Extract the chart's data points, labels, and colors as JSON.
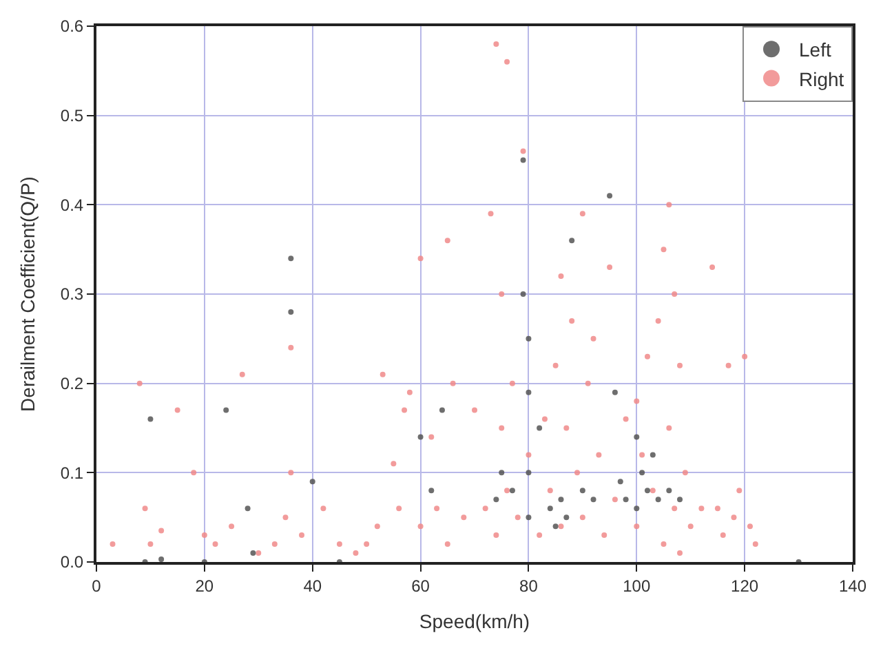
{
  "chart_data": {
    "type": "scatter",
    "xlabel": "Speed(km/h)",
    "ylabel": "Derailment Coefficient(Q/P)",
    "xlim": [
      0,
      140
    ],
    "xticks": [
      0,
      20,
      40,
      60,
      80,
      100,
      120,
      140
    ],
    "ylim": [
      0,
      0.6
    ],
    "yticks": [
      {
        "value": 0,
        "label": "0.0"
      },
      0.1,
      0.2,
      0.3,
      0.4,
      0.5,
      0.6
    ],
    "grid": true,
    "legend": "top right",
    "marker": "circle",
    "series": [
      {
        "name": "Left",
        "color": "#555555",
        "x": [
          9,
          10,
          12,
          20,
          24,
          28,
          29,
          36,
          36,
          40,
          45,
          60,
          62,
          64,
          74,
          75,
          77,
          79,
          79,
          80,
          80,
          80,
          80,
          82,
          84,
          85,
          86,
          87,
          88,
          90,
          92,
          95,
          96,
          97,
          98,
          100,
          100,
          101,
          102,
          103,
          104,
          106,
          108,
          130
        ],
        "values": [
          0.0,
          0.16,
          0.003,
          0.0,
          0.17,
          0.06,
          0.01,
          0.34,
          0.28,
          0.09,
          0.0,
          0.14,
          0.08,
          0.17,
          0.07,
          0.1,
          0.08,
          0.45,
          0.3,
          0.25,
          0.19,
          0.1,
          0.05,
          0.15,
          0.06,
          0.04,
          0.07,
          0.05,
          0.36,
          0.08,
          0.07,
          0.41,
          0.19,
          0.09,
          0.07,
          0.14,
          0.06,
          0.1,
          0.08,
          0.12,
          0.07,
          0.08,
          0.07,
          0.0
        ]
      },
      {
        "name": "Right",
        "color": "#f08a8a",
        "x": [
          3,
          8,
          9,
          10,
          12,
          15,
          18,
          20,
          22,
          25,
          27,
          30,
          33,
          35,
          36,
          36,
          38,
          42,
          45,
          48,
          50,
          52,
          53,
          55,
          56,
          57,
          58,
          60,
          60,
          62,
          63,
          65,
          65,
          66,
          68,
          70,
          72,
          73,
          74,
          74,
          75,
          75,
          76,
          76,
          77,
          78,
          79,
          80,
          82,
          83,
          84,
          85,
          86,
          86,
          87,
          88,
          89,
          90,
          90,
          91,
          92,
          93,
          94,
          95,
          96,
          98,
          100,
          100,
          101,
          102,
          103,
          104,
          105,
          105,
          106,
          106,
          107,
          107,
          108,
          108,
          109,
          110,
          112,
          114,
          115,
          116,
          117,
          118,
          119,
          120,
          121,
          122
        ],
        "values": [
          0.02,
          0.2,
          0.06,
          0.02,
          0.035,
          0.17,
          0.1,
          0.03,
          0.02,
          0.04,
          0.21,
          0.01,
          0.02,
          0.05,
          0.24,
          0.1,
          0.03,
          0.06,
          0.02,
          0.01,
          0.02,
          0.04,
          0.21,
          0.11,
          0.06,
          0.17,
          0.19,
          0.34,
          0.04,
          0.14,
          0.06,
          0.36,
          0.02,
          0.2,
          0.05,
          0.17,
          0.06,
          0.39,
          0.58,
          0.03,
          0.3,
          0.15,
          0.56,
          0.08,
          0.2,
          0.05,
          0.46,
          0.12,
          0.03,
          0.16,
          0.08,
          0.22,
          0.32,
          0.04,
          0.15,
          0.27,
          0.1,
          0.39,
          0.05,
          0.2,
          0.25,
          0.12,
          0.03,
          0.33,
          0.07,
          0.16,
          0.18,
          0.04,
          0.12,
          0.23,
          0.08,
          0.27,
          0.35,
          0.02,
          0.4,
          0.15,
          0.3,
          0.06,
          0.22,
          0.01,
          0.1,
          0.04,
          0.06,
          0.33,
          0.06,
          0.03,
          0.22,
          0.05,
          0.08,
          0.23,
          0.04,
          0.02
        ]
      }
    ]
  }
}
